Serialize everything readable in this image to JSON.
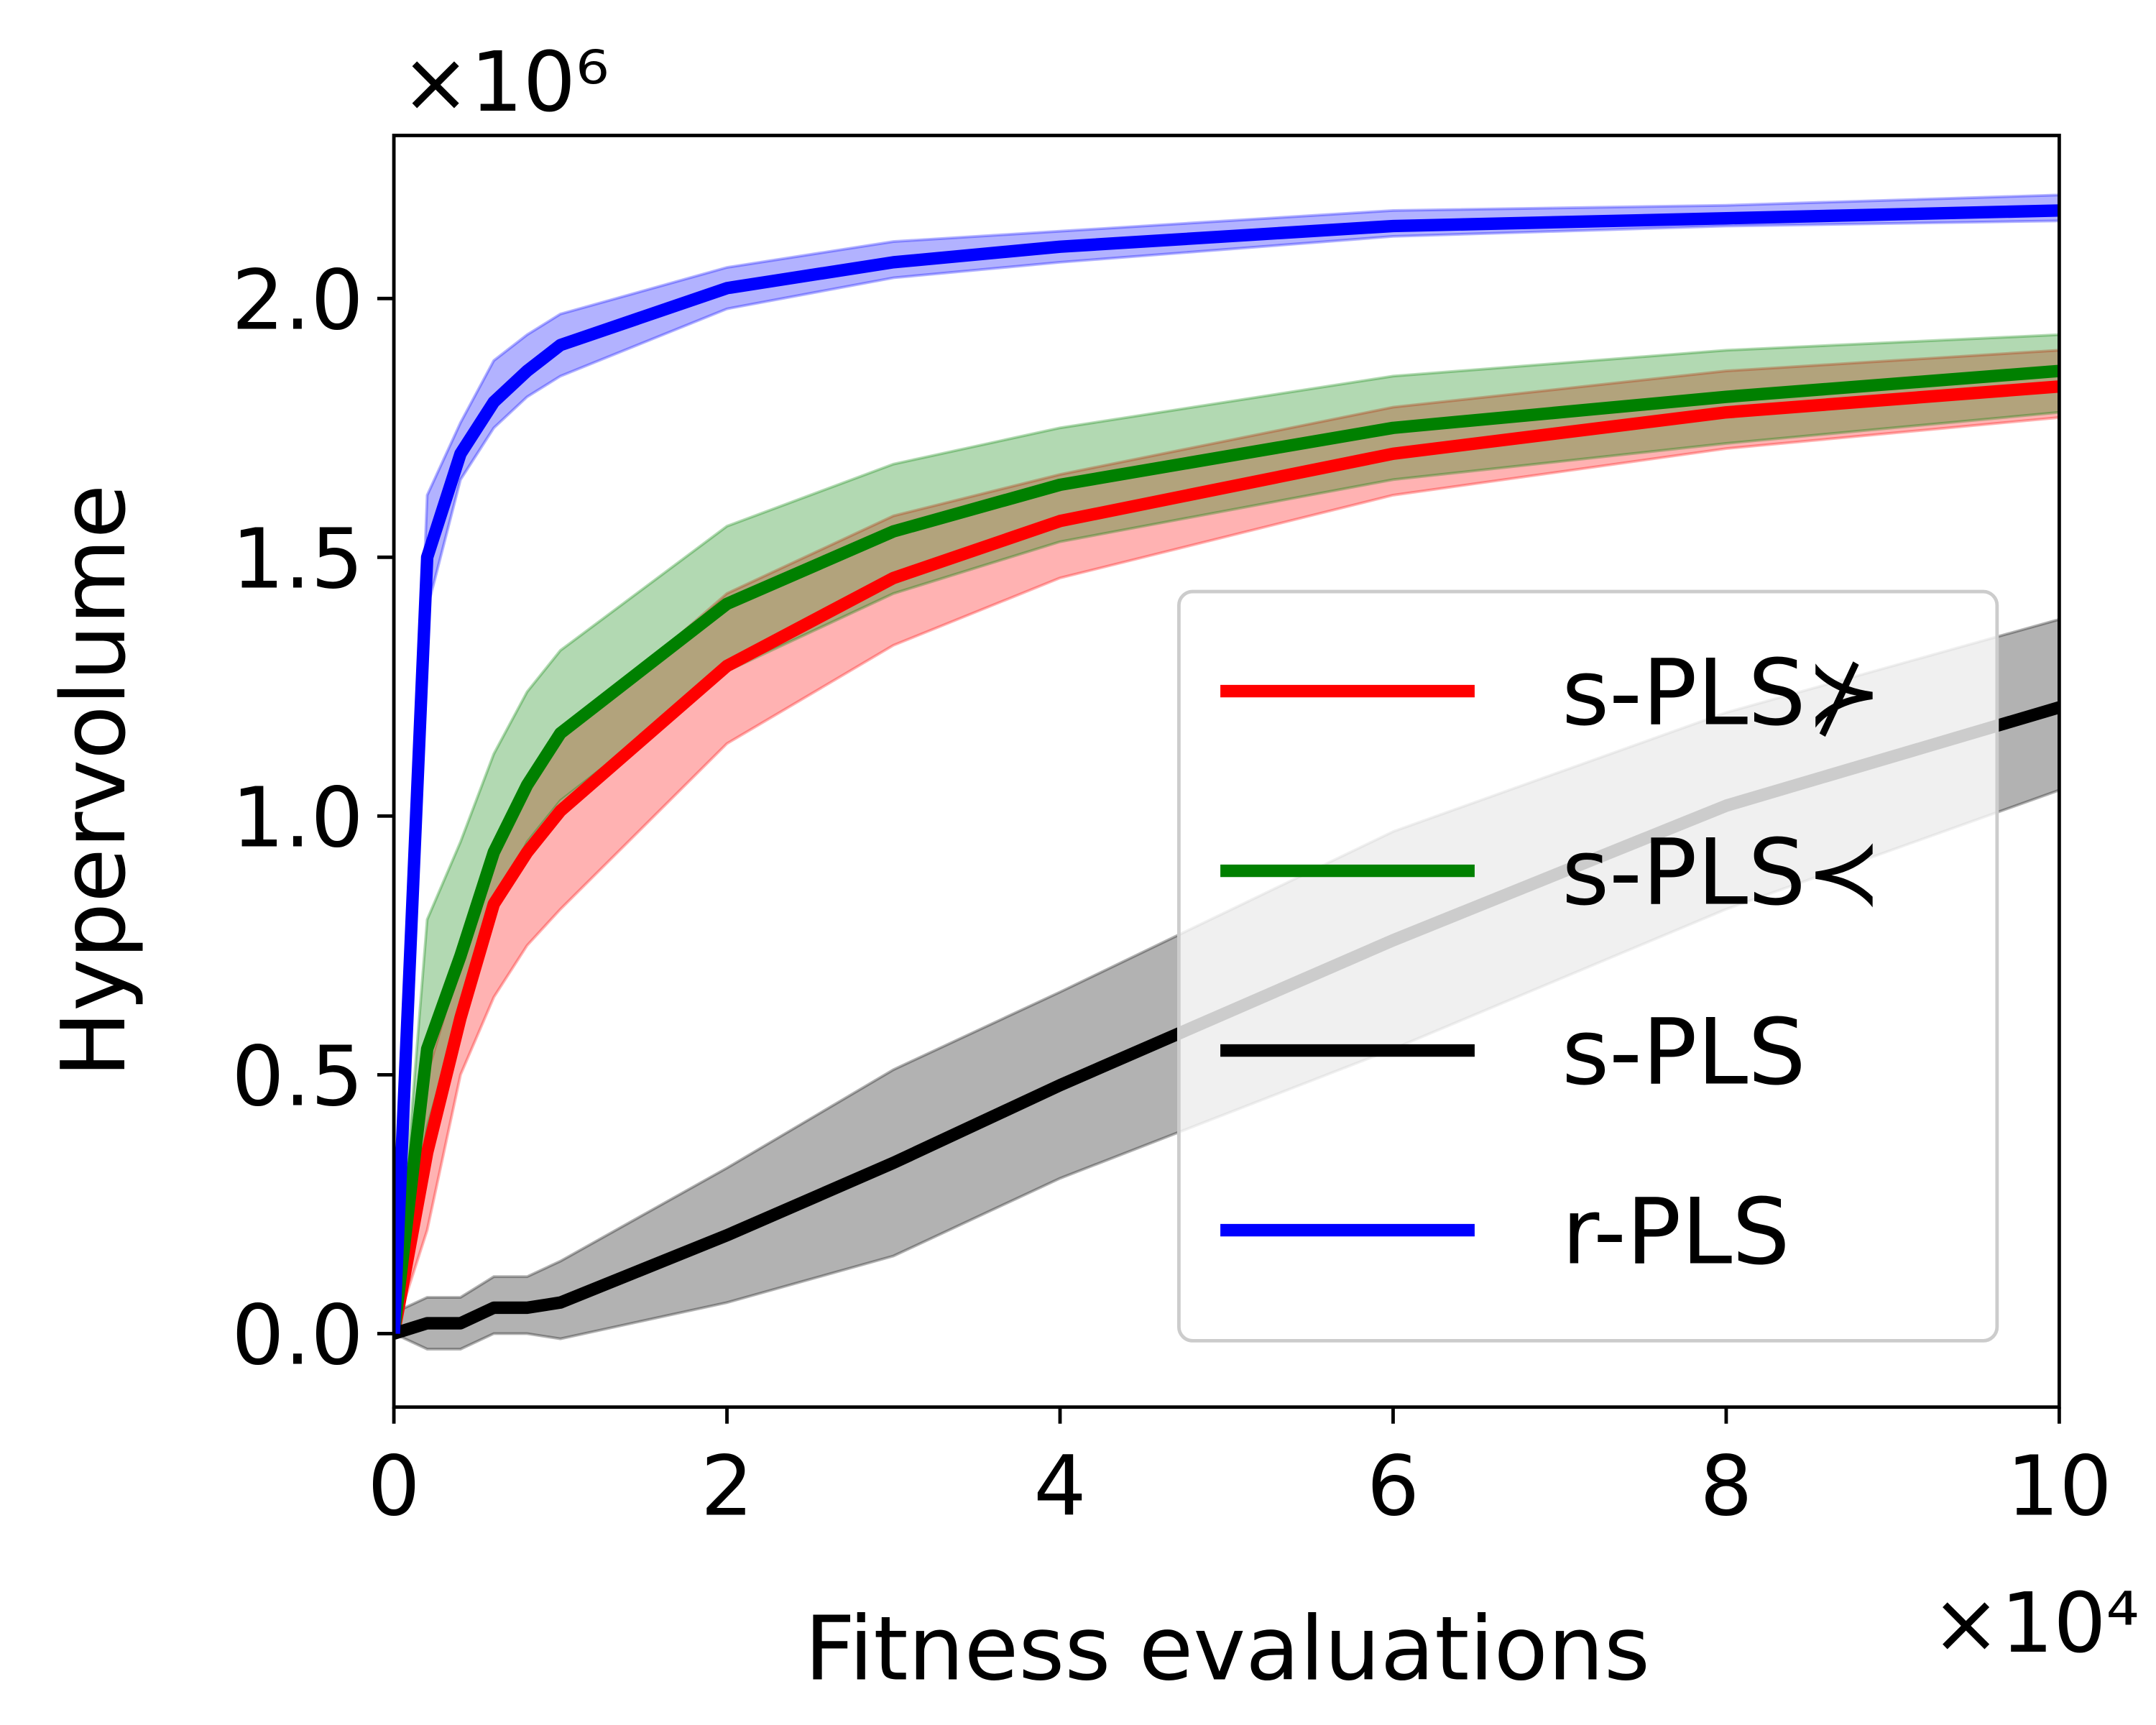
{
  "chart_data": {
    "type": "line",
    "xlabel": "Fitness evaluations",
    "ylabel": "Hypervolume",
    "x_offset_label": "×10⁴",
    "y_offset_label": "×10⁶",
    "x": [
      0,
      0.2,
      0.4,
      0.6,
      0.8,
      1,
      2,
      3,
      4,
      6,
      8,
      10
    ],
    "series": [
      {
        "name": "s-PLS⊁",
        "color": "#ff0000",
        "values": [
          0,
          0.35,
          0.61,
          0.83,
          0.93,
          1.01,
          1.29,
          1.46,
          1.57,
          1.7,
          1.78,
          1.83
        ],
        "lower": [
          0,
          0.2,
          0.5,
          0.65,
          0.75,
          0.82,
          1.14,
          1.33,
          1.46,
          1.62,
          1.71,
          1.77
        ],
        "upper": [
          0,
          0.5,
          0.72,
          0.92,
          1.05,
          1.15,
          1.43,
          1.58,
          1.66,
          1.79,
          1.86,
          1.9
        ]
      },
      {
        "name": "s-PLS≺",
        "color": "#008000",
        "values": [
          0,
          0.55,
          0.73,
          0.93,
          1.06,
          1.16,
          1.41,
          1.55,
          1.64,
          1.75,
          1.81,
          1.86
        ],
        "lower": [
          0,
          0.4,
          0.62,
          0.82,
          0.95,
          1.03,
          1.28,
          1.43,
          1.53,
          1.65,
          1.72,
          1.78
        ],
        "upper": [
          0,
          0.8,
          0.95,
          1.12,
          1.24,
          1.32,
          1.56,
          1.68,
          1.75,
          1.85,
          1.9,
          1.93
        ]
      },
      {
        "name": "s-PLS",
        "color": "#000000",
        "values": [
          0,
          0.02,
          0.02,
          0.05,
          0.05,
          0.06,
          0.19,
          0.33,
          0.48,
          0.76,
          1.02,
          1.21
        ],
        "lower": [
          0,
          -0.03,
          -0.03,
          0,
          0,
          -0.01,
          0.06,
          0.15,
          0.3,
          0.55,
          0.82,
          1.05
        ],
        "upper": [
          0.04,
          0.07,
          0.07,
          0.11,
          0.11,
          0.14,
          0.32,
          0.51,
          0.66,
          0.97,
          1.2,
          1.38
        ]
      },
      {
        "name": "r-PLS",
        "color": "#0000ff",
        "values": [
          0,
          1.5,
          1.7,
          1.8,
          1.86,
          1.91,
          2.02,
          2.07,
          2.1,
          2.14,
          2.155,
          2.17
        ],
        "lower": [
          0,
          1.4,
          1.65,
          1.75,
          1.81,
          1.85,
          1.98,
          2.04,
          2.07,
          2.12,
          2.14,
          2.15
        ],
        "upper": [
          0,
          1.62,
          1.76,
          1.88,
          1.93,
          1.97,
          2.06,
          2.11,
          2.13,
          2.17,
          2.18,
          2.2
        ]
      }
    ],
    "xlim": [
      0,
      10
    ],
    "xticks": [
      0,
      2,
      4,
      6,
      8,
      10
    ],
    "ylim": [
      -0.142,
      2.315
    ],
    "yticks": [
      {
        "value": 0,
        "label": "0.0"
      },
      0.5,
      {
        "value": 1,
        "label": "1.0"
      },
      1.5,
      {
        "value": 2,
        "label": "2.0"
      }
    ],
    "legend": "lower right",
    "grid": false
  }
}
